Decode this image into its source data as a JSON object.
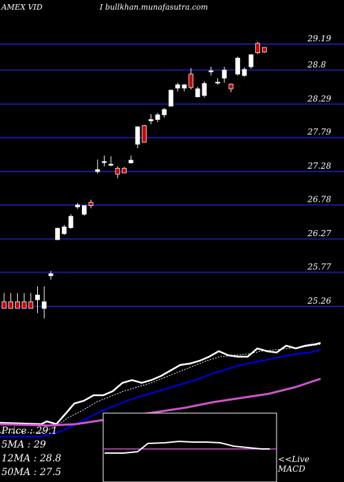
{
  "header": {
    "ticker": "AMEX VID",
    "site": "I bullkhan.munafasutra.com"
  },
  "info": {
    "price": "Price   : 29.1",
    "ma5": "5MA : 29",
    "ma12": "12MA : 28.8",
    "ma50": "50MA : 27.5"
  },
  "macd": {
    "line1": "<<Live",
    "line2": "MACD"
  },
  "colors": {
    "background": "#000000",
    "gridline": "#1a1a99",
    "up_candle": "#ffffff",
    "down_candle": "#cc0000",
    "ma_short": "#ffffff",
    "ma_mid": "#0000cc",
    "ma_long": "#cc55cc"
  },
  "chart_data": {
    "type": "candlestick",
    "ytick_labels": [
      "29.19",
      "28.8",
      "28.29",
      "27.79",
      "27.28",
      "26.78",
      "26.27",
      "25.77",
      "25.26"
    ],
    "yticks": [
      29.19,
      28.8,
      28.29,
      27.79,
      27.28,
      26.78,
      26.27,
      25.77,
      25.26
    ],
    "ylim": [
      25.1,
      29.5
    ],
    "candles": [
      {
        "o": 25.33,
        "h": 25.46,
        "l": 25.23,
        "c": 25.23
      },
      {
        "o": 25.33,
        "h": 25.46,
        "l": 25.23,
        "c": 25.23
      },
      {
        "o": 25.33,
        "h": 25.46,
        "l": 25.23,
        "c": 25.23
      },
      {
        "o": 25.33,
        "h": 25.46,
        "l": 25.23,
        "c": 25.23
      },
      {
        "o": 25.33,
        "h": 25.46,
        "l": 25.23,
        "c": 25.23
      },
      {
        "o": 25.36,
        "h": 25.56,
        "l": 25.16,
        "c": 25.43
      },
      {
        "o": 25.23,
        "h": 25.56,
        "l": 25.08,
        "c": 25.33
      },
      {
        "o": 25.72,
        "h": 25.79,
        "l": 25.66,
        "c": 25.75
      },
      {
        "o": 26.26,
        "h": 26.44,
        "l": 26.26,
        "c": 26.43
      },
      {
        "o": 26.35,
        "h": 26.48,
        "l": 26.33,
        "c": 26.45
      },
      {
        "o": 26.44,
        "h": 26.64,
        "l": 26.42,
        "c": 26.61
      },
      {
        "o": 26.75,
        "h": 26.81,
        "l": 26.72,
        "c": 26.78
      },
      {
        "o": 26.64,
        "h": 26.77,
        "l": 26.62,
        "c": 26.77
      },
      {
        "o": 26.82,
        "h": 26.86,
        "l": 26.73,
        "c": 26.77
      },
      {
        "o": 27.28,
        "h": 27.46,
        "l": 27.25,
        "c": 27.31
      },
      {
        "o": 27.43,
        "h": 27.52,
        "l": 27.36,
        "c": 27.43
      },
      {
        "o": 27.39,
        "h": 27.51,
        "l": 27.36,
        "c": 27.39
      },
      {
        "o": 27.33,
        "h": 27.36,
        "l": 27.18,
        "c": 27.24
      },
      {
        "o": 27.33,
        "h": 27.35,
        "l": 27.26,
        "c": 27.26
      },
      {
        "o": 27.41,
        "h": 27.52,
        "l": 27.4,
        "c": 27.45
      },
      {
        "o": 27.69,
        "h": 27.96,
        "l": 27.63,
        "c": 27.95
      },
      {
        "o": 27.97,
        "h": 27.98,
        "l": 27.72,
        "c": 27.72
      },
      {
        "o": 28.04,
        "h": 28.14,
        "l": 27.99,
        "c": 28.06
      },
      {
        "o": 28.06,
        "h": 28.16,
        "l": 28.02,
        "c": 28.13
      },
      {
        "o": 28.13,
        "h": 28.23,
        "l": 28.09,
        "c": 28.21
      },
      {
        "o": 28.26,
        "h": 28.5,
        "l": 28.26,
        "c": 28.5
      },
      {
        "o": 28.53,
        "h": 28.61,
        "l": 28.48,
        "c": 28.58
      },
      {
        "o": 28.53,
        "h": 28.59,
        "l": 28.48,
        "c": 28.58
      },
      {
        "o": 28.74,
        "h": 28.83,
        "l": 28.51,
        "c": 28.54
      },
      {
        "o": 28.4,
        "h": 28.55,
        "l": 28.39,
        "c": 28.52
      },
      {
        "o": 28.42,
        "h": 28.63,
        "l": 28.39,
        "c": 28.6
      },
      {
        "o": 28.78,
        "h": 28.85,
        "l": 28.72,
        "c": 28.79
      },
      {
        "o": 28.61,
        "h": 28.68,
        "l": 28.58,
        "c": 28.62
      },
      {
        "o": 28.68,
        "h": 28.85,
        "l": 28.61,
        "c": 28.8
      },
      {
        "o": 28.59,
        "h": 28.6,
        "l": 28.47,
        "c": 28.52
      },
      {
        "o": 28.74,
        "h": 29.0,
        "l": 28.72,
        "c": 28.98
      },
      {
        "o": 28.72,
        "h": 28.84,
        "l": 28.7,
        "c": 28.81
      },
      {
        "o": 28.85,
        "h": 29.04,
        "l": 28.82,
        "c": 29.03
      },
      {
        "o": 29.2,
        "h": 29.22,
        "l": 29.04,
        "c": 29.06
      },
      {
        "o": 29.14,
        "h": 29.14,
        "l": 29.06,
        "c": 29.07
      }
    ]
  }
}
